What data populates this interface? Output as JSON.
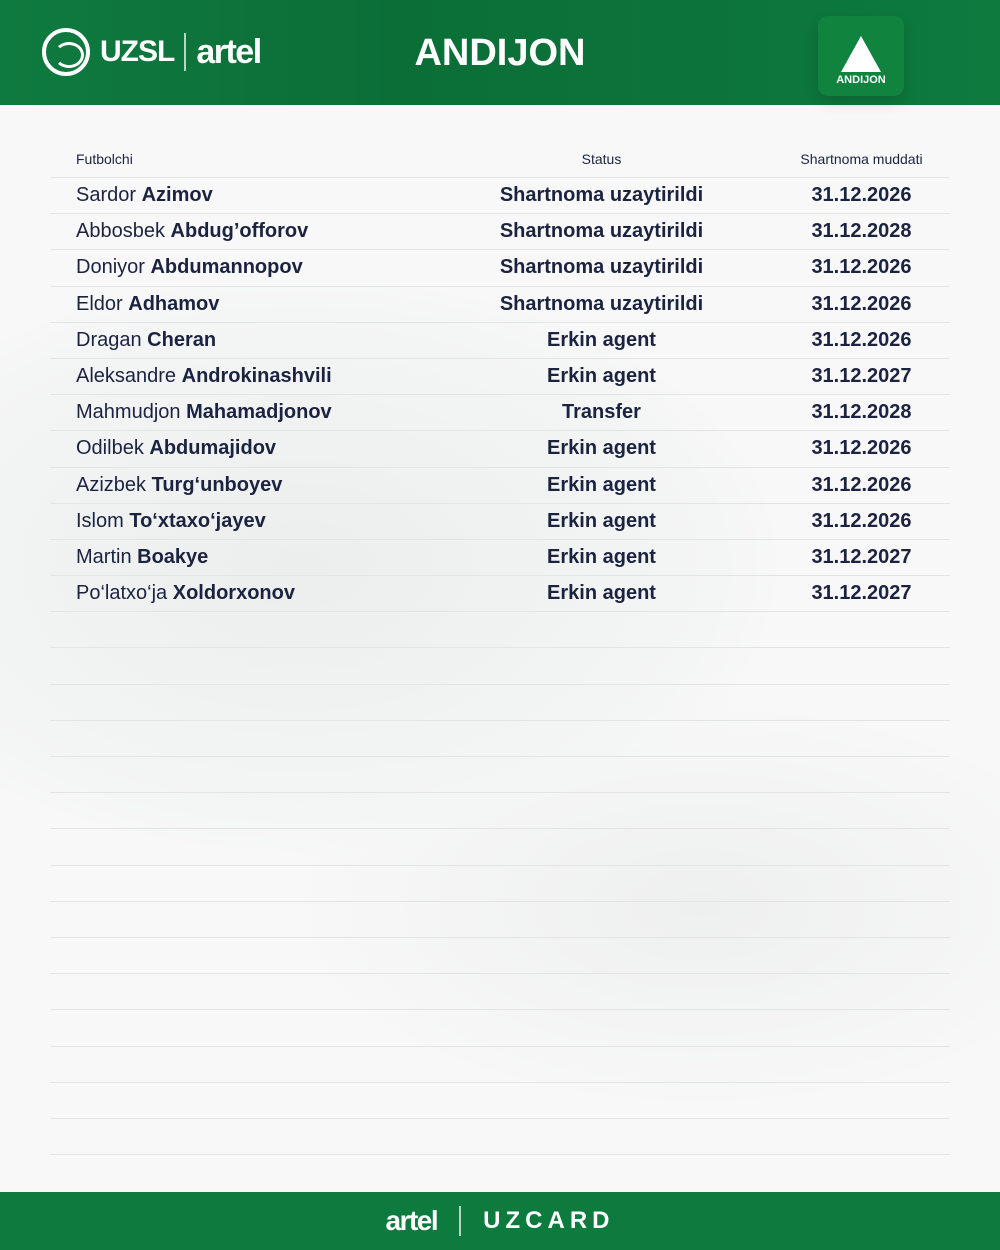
{
  "header": {
    "club": "ANDIJON",
    "league_logo": "UZSL",
    "sponsor_logo": "artel",
    "crest_text": "ANDIJON"
  },
  "table": {
    "columns": [
      "Futbolchi",
      "Status",
      "Shartnoma muddati"
    ],
    "rows": [
      {
        "first": "Sardor",
        "last": "Azimov",
        "status": "Shartnoma uzaytirildi",
        "date": "31.12.2026"
      },
      {
        "first": "Abbosbek",
        "last": "Abdug’offorov",
        "status": "Shartnoma uzaytirildi",
        "date": "31.12.2028"
      },
      {
        "first": "Doniyor",
        "last": "Abdumannopov",
        "status": "Shartnoma uzaytirildi",
        "date": "31.12.2026"
      },
      {
        "first": "Eldor",
        "last": "Adhamov",
        "status": "Shartnoma uzaytirildi",
        "date": "31.12.2026"
      },
      {
        "first": "Dragan",
        "last": "Cheran",
        "status": "Erkin agent",
        "date": "31.12.2026"
      },
      {
        "first": "Aleksandre",
        "last": "Androkinashvili",
        "status": "Erkin agent",
        "date": "31.12.2027"
      },
      {
        "first": "Mahmudjon",
        "last": "Mahamadjonov",
        "status": "Transfer",
        "date": "31.12.2028"
      },
      {
        "first": "Odilbek",
        "last": "Abdumajidov",
        "status": "Erkin agent",
        "date": "31.12.2026"
      },
      {
        "first": "Azizbek",
        "last": "Turg‘unboyev",
        "status": "Erkin agent",
        "date": "31.12.2026"
      },
      {
        "first": "Islom",
        "last": "To‘xtaxo‘jayev",
        "status": "Erkin agent",
        "date": "31.12.2026"
      },
      {
        "first": "Martin",
        "last": "Boakye",
        "status": "Erkin agent",
        "date": "31.12.2027"
      },
      {
        "first": "Po‘latxo‘ja",
        "last": "Xoldorxonov",
        "status": "Erkin agent",
        "date": "31.12.2027"
      }
    ]
  },
  "footer": {
    "sponsor1": "artel",
    "sponsor2": "UZCARD"
  },
  "colors": {
    "green": "#0d7a3e",
    "text": "#1b2340"
  }
}
